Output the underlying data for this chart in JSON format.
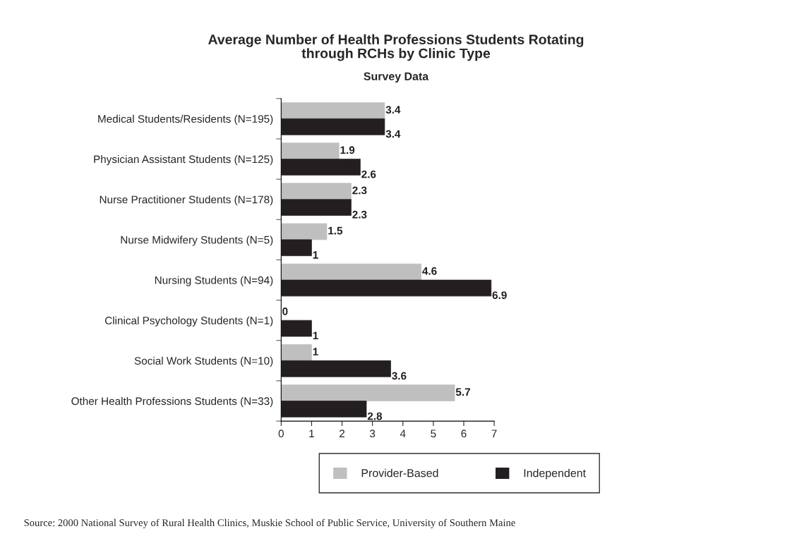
{
  "chart_data": {
    "type": "bar",
    "orientation": "horizontal",
    "title": "Average Number of Health Professions Students Rotating\nthrough RCHs by Clinic Type",
    "subtitle": "Survey Data",
    "categories": [
      "Medical Students/Residents (N=195)",
      "Physician Assistant Students (N=125)",
      "Nurse Practitioner Students (N=178)",
      "Nurse Midwifery Students (N=5)",
      "Nursing Students (N=94)",
      "Clinical Psychology Students (N=1)",
      "Social Work Students (N=10)",
      "Other Health Professions Students (N=33)"
    ],
    "series": [
      {
        "name": "Provider-Based",
        "color": "#bfbfbf",
        "values": [
          3.4,
          1.9,
          2.3,
          1.5,
          4.6,
          0,
          1,
          5.7
        ]
      },
      {
        "name": "Independent",
        "color": "#231f20",
        "values": [
          3.4,
          2.6,
          2.3,
          1,
          6.9,
          1,
          3.6,
          2.8
        ]
      }
    ],
    "xlim": [
      0,
      7
    ],
    "xticks": [
      0,
      1,
      2,
      3,
      4,
      5,
      6,
      7
    ],
    "data_labels": true,
    "grid": false,
    "legend": "bottom",
    "annotations": [
      "Source: 2000 National Survey of Rural Health Clinics, Muskie School of Public Service, University of Southern Maine"
    ]
  }
}
